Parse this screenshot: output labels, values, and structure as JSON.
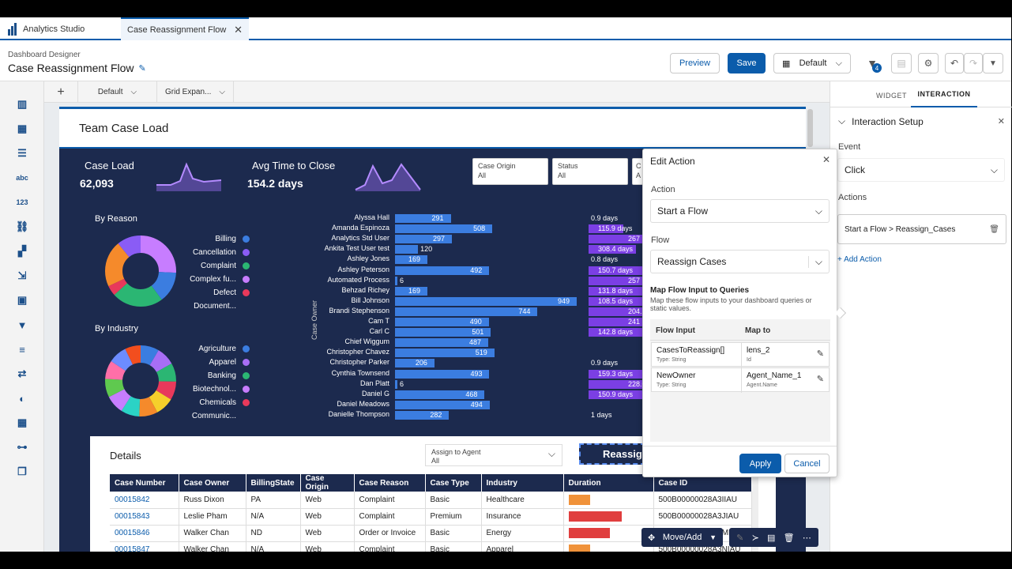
{
  "app": {
    "name": "Analytics Studio",
    "tab": "Case Reassignment Flow"
  },
  "header": {
    "breadcrumb": "Dashboard Designer",
    "title": "Case Reassignment Flow",
    "preview": "Preview",
    "save": "Save",
    "layout": "Default",
    "filter_badge": "4"
  },
  "layout_tabs": {
    "add": "+",
    "default": "Default",
    "grid": "Grid Expan..."
  },
  "dashboard": {
    "title": "Team Case Load",
    "kpi1": {
      "label": "Case Load",
      "value": "62,093"
    },
    "kpi2": {
      "label": "Avg Time to Close",
      "value": "154.2 days"
    },
    "filters": [
      {
        "label": "Case Origin",
        "value": "All"
      },
      {
        "label": "Status",
        "value": "All"
      },
      {
        "label": "C",
        "value": "A"
      }
    ],
    "by_reason": {
      "title": "By Reason",
      "items": [
        "Billing",
        "Cancellation",
        "Complaint",
        "Complex fu...",
        "Defect",
        "Document..."
      ]
    },
    "by_industry": {
      "title": "By Industry",
      "items": [
        "Agriculture",
        "Apparel",
        "Banking",
        "Biotechnol...",
        "Chemicals",
        "Communic..."
      ]
    },
    "axis_label": "Case Owner",
    "reassign_label": "Reassign"
  },
  "chart_data": [
    {
      "type": "bar",
      "title": "",
      "ylabel": "Case Owner",
      "categories": [
        "Alyssa Hall",
        "Amanda Espinoza",
        "Analytics Std User",
        "Ankita Test User test",
        "Ashley Jones",
        "Ashley Peterson",
        "Automated Process",
        "Behzad Richey",
        "Bill Johnson",
        "Brandi Stephenson",
        "Cam T",
        "Carl C",
        "Chief Wiggum",
        "Christopher Chavez",
        "Christopher Parker",
        "Cynthia Townsend",
        "Dan Platt",
        "Daniel G",
        "Daniel Meadows",
        "Danielle Thompson"
      ],
      "values": [
        291,
        508,
        297,
        120,
        169,
        492,
        6,
        169,
        949,
        744,
        490,
        501,
        487,
        519,
        206,
        493,
        6,
        468,
        494,
        282
      ]
    },
    {
      "type": "bar",
      "title": "",
      "labels": [
        "0.9 days",
        "115.9 days",
        "267",
        "308.4 days",
        "0.8 days",
        "150.7 days",
        "257",
        "131.8 days",
        "108.5 days",
        "204.1",
        "241",
        "142.8 days",
        "0.9 days",
        "159.3 days",
        "228.0",
        "150.9 days",
        "1 days"
      ]
    }
  ],
  "colors": {
    "reason": [
      "#3b7de0",
      "#8a5cf5",
      "#2bb673",
      "#c77dff",
      "#e8395b",
      "#f58a2b"
    ],
    "industry": [
      "#3b7de0",
      "#a86ef5",
      "#2bb673",
      "#c77dff",
      "#e8395b",
      "#f5d02b"
    ]
  },
  "details": {
    "title": "Details",
    "assign": {
      "label": "Assign to Agent",
      "value": "All"
    },
    "columns": [
      "Case Number",
      "Case Owner",
      "BillingState",
      "Case Origin",
      "Case Reason",
      "Case Type",
      "Industry",
      "Duration",
      "Case ID"
    ],
    "rows": [
      [
        "00015842",
        "Russ Dixon",
        "PA",
        "Web",
        "Complaint",
        "Basic",
        "Healthcare",
        "",
        "500B00000028A3IIAU"
      ],
      [
        "00015843",
        "Leslie Pham",
        "N/A",
        "Web",
        "Complaint",
        "Premium",
        "Insurance",
        "",
        "500B00000028A3JIAU"
      ],
      [
        "00015846",
        "Walker Chan",
        "ND",
        "Web",
        "Order or Invoice",
        "Basic",
        "Energy",
        "",
        "500B00000028A3MIAU"
      ],
      [
        "00015847",
        "Walker Chan",
        "N/A",
        "Web",
        "Complaint",
        "Basic",
        "Apparel",
        "",
        "500B00000028A3NIAU"
      ]
    ],
    "durations": [
      0.27,
      0.67,
      0.52,
      0.27
    ]
  },
  "edit_action": {
    "title": "Edit Action",
    "action_label": "Action",
    "action_value": "Start a Flow",
    "flow_label": "Flow",
    "flow_value": "Reassign Cases",
    "map_title": "Map Flow Input to Queries",
    "map_desc": "Map these flow inputs to your dashboard queries or static values.",
    "col_input": "Flow Input",
    "col_map": "Map to",
    "rows": [
      {
        "input": "CasesToReassign[]",
        "type": "Type: String",
        "map": "lens_2",
        "sub": "Id"
      },
      {
        "input": "NewOwner",
        "type": "Type: String",
        "map": "Agent_Name_1",
        "sub": "Agent.Name"
      }
    ],
    "apply": "Apply",
    "cancel": "Cancel"
  },
  "right_panel": {
    "tabs": [
      "WIDGET",
      "INTERACTION"
    ],
    "section": "Interaction Setup",
    "event_label": "Event",
    "event_value": "Click",
    "actions_label": "Actions",
    "action_item": "Start a Flow > Reassign_Cases",
    "add_action": "+ Add Action"
  },
  "move_bar": {
    "label": "Move/Add"
  }
}
